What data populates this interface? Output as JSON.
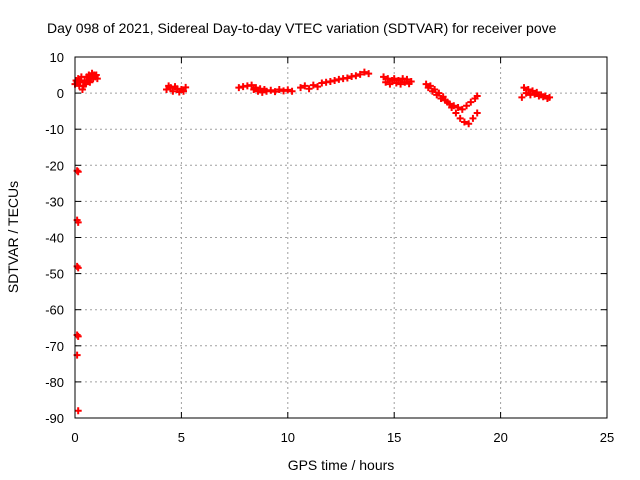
{
  "chart_data": {
    "type": "scatter",
    "title": "Day 098 of 2021, Sidereal Day-to-day VTEC variation (SDTVAR) for receiver pove",
    "xlabel": "GPS time / hours",
    "ylabel": "SDTVAR / TECUs",
    "xlim": [
      0,
      25
    ],
    "ylim": [
      -90,
      10
    ],
    "xticks": [
      0,
      5,
      10,
      15,
      20,
      25
    ],
    "yticks": [
      -90,
      -80,
      -70,
      -60,
      -50,
      -40,
      -30,
      -20,
      -10,
      0,
      10
    ],
    "grid": true,
    "marker": "+",
    "color": "#ff0000",
    "series": [
      {
        "name": "SDTVAR",
        "points": [
          [
            0.0,
            2.5
          ],
          [
            0.05,
            3.5
          ],
          [
            0.1,
            3.0
          ],
          [
            0.15,
            4.0
          ],
          [
            0.2,
            2.0
          ],
          [
            0.25,
            3.0
          ],
          [
            0.3,
            4.5
          ],
          [
            0.35,
            1.0
          ],
          [
            0.4,
            2.0
          ],
          [
            0.45,
            3.5
          ],
          [
            0.5,
            2.5
          ],
          [
            0.55,
            4.5
          ],
          [
            0.6,
            3.5
          ],
          [
            0.65,
            5.0
          ],
          [
            0.7,
            3.0
          ],
          [
            0.75,
            4.0
          ],
          [
            0.8,
            5.5
          ],
          [
            0.85,
            4.0
          ],
          [
            0.9,
            5.0
          ],
          [
            0.95,
            4.5
          ],
          [
            1.0,
            5.0
          ],
          [
            1.05,
            4.0
          ],
          [
            0.1,
            -21.5
          ],
          [
            0.15,
            -21.8
          ],
          [
            0.1,
            -35.2
          ],
          [
            0.15,
            -35.8
          ],
          [
            0.1,
            -48.0
          ],
          [
            0.15,
            -48.4
          ],
          [
            0.1,
            -67.0
          ],
          [
            0.15,
            -67.4
          ],
          [
            0.1,
            -72.6
          ],
          [
            0.15,
            -88.0
          ],
          [
            4.3,
            1.0
          ],
          [
            4.4,
            2.0
          ],
          [
            4.5,
            1.5
          ],
          [
            4.6,
            0.5
          ],
          [
            4.7,
            1.8
          ],
          [
            4.8,
            1.2
          ],
          [
            4.9,
            0.3
          ],
          [
            5.0,
            1.0
          ],
          [
            5.1,
            0.5
          ],
          [
            5.2,
            1.6
          ],
          [
            7.7,
            1.5
          ],
          [
            7.9,
            1.8
          ],
          [
            8.1,
            2.0
          ],
          [
            8.3,
            2.2
          ],
          [
            8.4,
            1.0
          ],
          [
            8.5,
            1.5
          ],
          [
            8.6,
            0.5
          ],
          [
            8.7,
            1.2
          ],
          [
            8.8,
            0.2
          ],
          [
            8.9,
            1.0
          ],
          [
            9.0,
            0.5
          ],
          [
            9.2,
            0.8
          ],
          [
            9.4,
            0.4
          ],
          [
            9.6,
            1.0
          ],
          [
            9.8,
            0.6
          ],
          [
            10.0,
            0.9
          ],
          [
            10.2,
            0.5
          ],
          [
            10.6,
            1.5
          ],
          [
            10.8,
            2.0
          ],
          [
            11.0,
            1.2
          ],
          [
            11.2,
            2.2
          ],
          [
            11.4,
            1.8
          ],
          [
            11.6,
            2.8
          ],
          [
            11.8,
            3.0
          ],
          [
            12.0,
            3.2
          ],
          [
            12.2,
            3.5
          ],
          [
            12.4,
            3.8
          ],
          [
            12.6,
            4.0
          ],
          [
            12.8,
            4.2
          ],
          [
            13.0,
            4.6
          ],
          [
            13.2,
            4.8
          ],
          [
            13.4,
            5.2
          ],
          [
            13.6,
            5.8
          ],
          [
            13.8,
            5.4
          ],
          [
            14.5,
            4.5
          ],
          [
            14.6,
            3.0
          ],
          [
            14.7,
            4.0
          ],
          [
            14.8,
            2.5
          ],
          [
            14.9,
            3.5
          ],
          [
            15.0,
            4.0
          ],
          [
            15.1,
            2.8
          ],
          [
            15.2,
            3.5
          ],
          [
            15.3,
            2.5
          ],
          [
            15.4,
            4.0
          ],
          [
            15.5,
            3.0
          ],
          [
            15.6,
            3.8
          ],
          [
            15.7,
            2.6
          ],
          [
            15.8,
            3.2
          ],
          [
            16.5,
            2.5
          ],
          [
            16.7,
            2.0
          ],
          [
            16.9,
            1.0
          ],
          [
            17.1,
            0.0
          ],
          [
            17.3,
            -1.0
          ],
          [
            17.5,
            -2.5
          ],
          [
            17.7,
            -4.0
          ],
          [
            17.9,
            -5.5
          ],
          [
            18.1,
            -7.0
          ],
          [
            18.3,
            -8.0
          ],
          [
            18.5,
            -8.5
          ],
          [
            18.7,
            -7.0
          ],
          [
            18.9,
            -5.5
          ],
          [
            16.6,
            1.5
          ],
          [
            16.8,
            0.5
          ],
          [
            17.0,
            -0.5
          ],
          [
            17.2,
            -1.5
          ],
          [
            17.4,
            -2.0
          ],
          [
            17.6,
            -3.0
          ],
          [
            17.8,
            -3.5
          ],
          [
            18.0,
            -4.0
          ],
          [
            18.2,
            -4.5
          ],
          [
            18.4,
            -3.5
          ],
          [
            18.6,
            -2.5
          ],
          [
            18.8,
            -1.5
          ],
          [
            18.9,
            -0.8
          ],
          [
            21.0,
            -1.2
          ],
          [
            21.1,
            1.5
          ],
          [
            21.2,
            0.0
          ],
          [
            21.3,
            1.0
          ],
          [
            21.4,
            -0.5
          ],
          [
            21.5,
            0.6
          ],
          [
            21.6,
            -0.3
          ],
          [
            21.7,
            0.2
          ],
          [
            21.8,
            -0.8
          ],
          [
            21.9,
            -0.5
          ],
          [
            22.0,
            -1.0
          ],
          [
            22.1,
            -0.8
          ],
          [
            22.2,
            -1.5
          ],
          [
            22.3,
            -1.2
          ]
        ]
      }
    ]
  }
}
